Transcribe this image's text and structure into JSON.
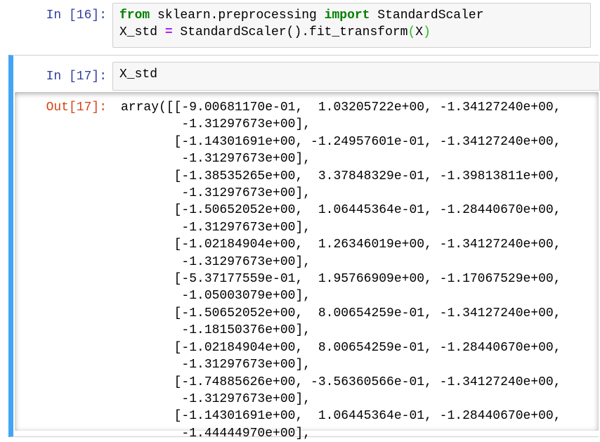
{
  "cells": [
    {
      "prompt": "In [16]:",
      "code_line1": {
        "kw1": "from",
        "mod": " sklearn.preprocessing ",
        "kw2": "import",
        "name": " StandardScaler"
      },
      "code_line2": {
        "lhs": "X_std ",
        "op": "=",
        "mid": " StandardScaler().fit_transform",
        "lparen": "(",
        "arg": "X",
        "rparen": ")"
      }
    },
    {
      "prompt": "In [17]:",
      "code": "X_std",
      "selected": true,
      "accent_color": "#42a5f5",
      "out_prompt": "Out[17]:",
      "output_lines": [
        "array([[-9.00681170e-01,  1.03205722e+00, -1.34127240e+00,",
        "        -1.31297673e+00],",
        "       [-1.14301691e+00, -1.24957601e-01, -1.34127240e+00,",
        "        -1.31297673e+00],",
        "       [-1.38535265e+00,  3.37848329e-01, -1.39813811e+00,",
        "        -1.31297673e+00],",
        "       [-1.50652052e+00,  1.06445364e-01, -1.28440670e+00,",
        "        -1.31297673e+00],",
        "       [-1.02184904e+00,  1.26346019e+00, -1.34127240e+00,",
        "        -1.31297673e+00],",
        "       [-5.37177559e-01,  1.95766909e+00, -1.17067529e+00,",
        "        -1.05003079e+00],",
        "       [-1.50652052e+00,  8.00654259e-01, -1.34127240e+00,",
        "        -1.18150376e+00],",
        "       [-1.02184904e+00,  8.00654259e-01, -1.28440670e+00,",
        "        -1.31297673e+00],",
        "       [-1.74885626e+00, -3.56360566e-01, -1.34127240e+00,",
        "        -1.31297673e+00],",
        "       [-1.14301691e+00,  1.06445364e-01, -1.28440670e+00,",
        "        -1.44444970e+00],"
      ]
    }
  ]
}
